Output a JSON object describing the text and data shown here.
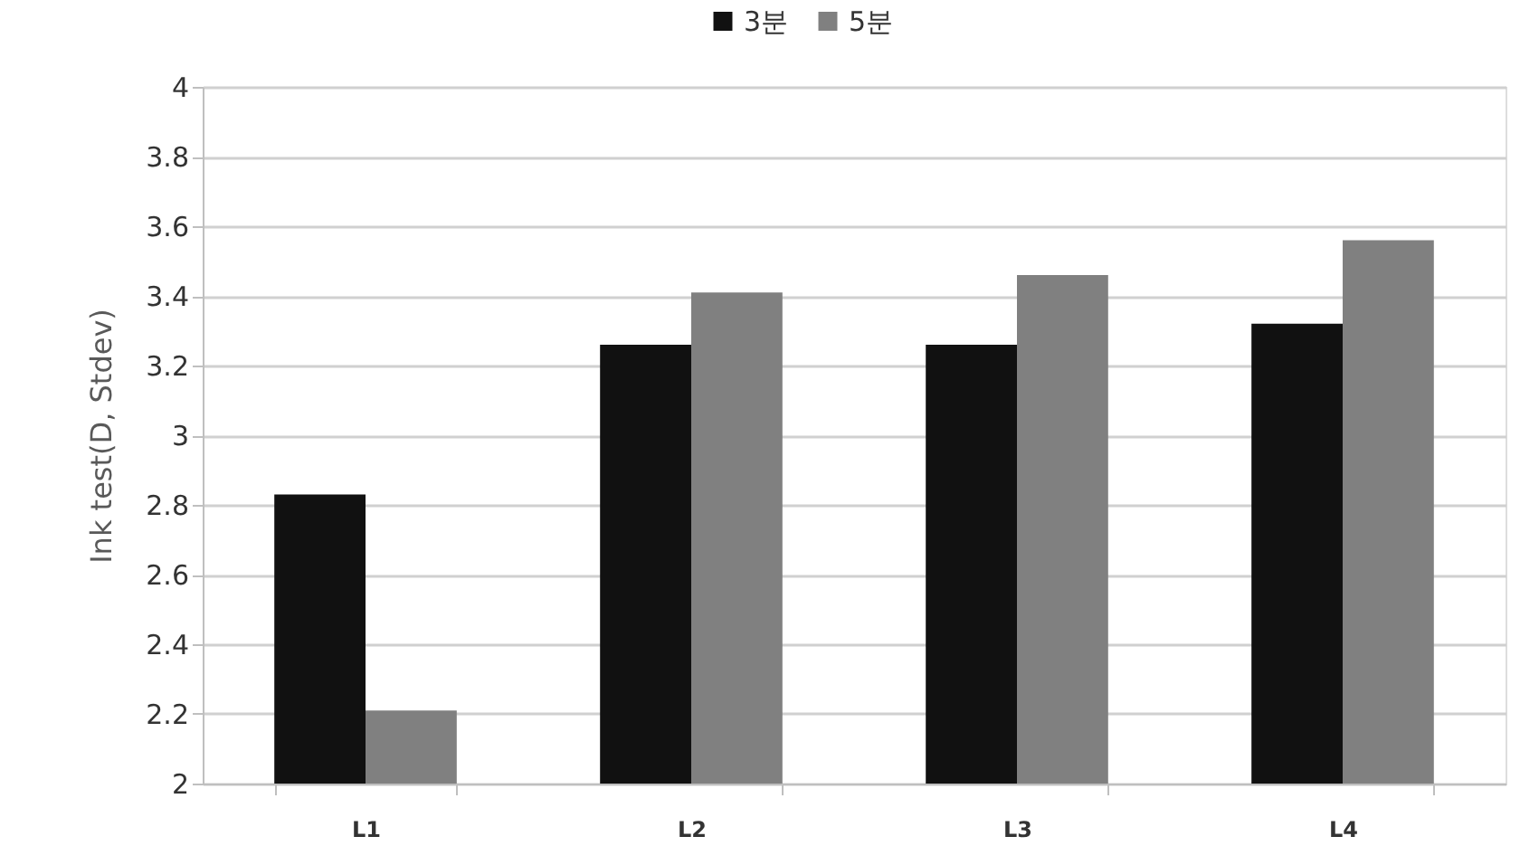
{
  "chart_data": {
    "type": "bar",
    "categories": [
      "L1",
      "L2",
      "L3",
      "L4"
    ],
    "series": [
      {
        "name": "3분",
        "color": "#111111",
        "values": [
          2.83,
          3.26,
          3.26,
          3.32
        ]
      },
      {
        "name": "5분",
        "color": "#808080",
        "values": [
          2.21,
          3.41,
          3.46,
          3.56
        ]
      }
    ],
    "ylabel": "Ink test(D, Stdev)",
    "ylim": [
      2,
      4
    ],
    "yticks": [
      2,
      2.2,
      2.4,
      2.6,
      2.8,
      3,
      3.2,
      3.4,
      3.6,
      3.8,
      4
    ],
    "grid": "y",
    "legend": "top"
  }
}
